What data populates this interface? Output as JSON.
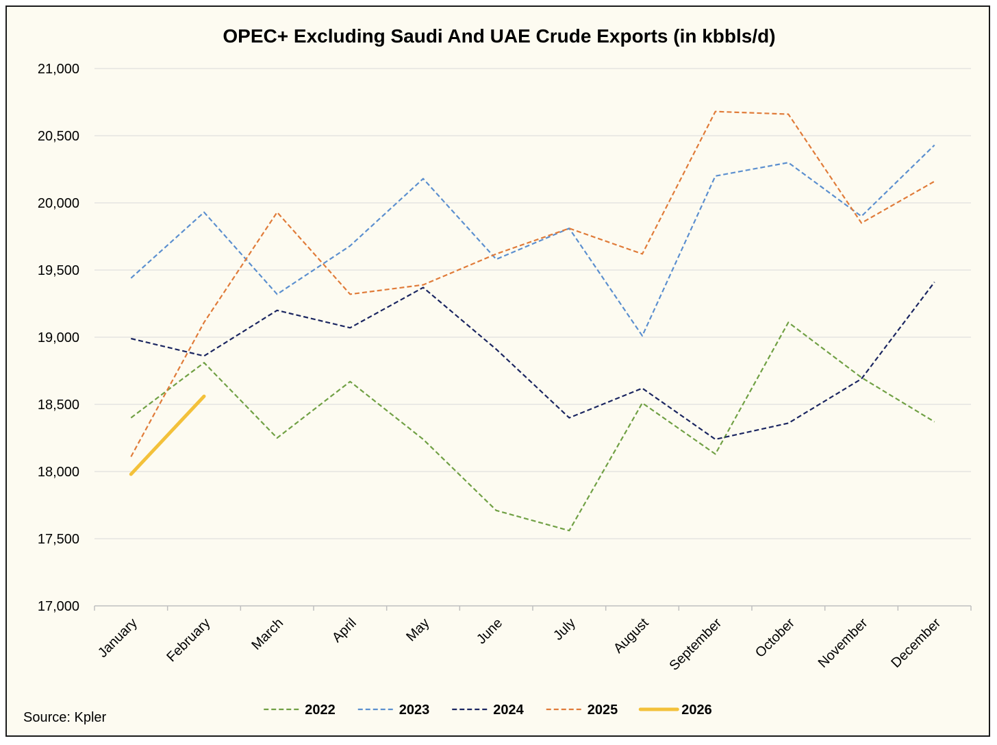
{
  "chart_data": {
    "type": "line",
    "title": "OPEC+ Excluding Saudi And UAE Crude Exports (in kbbls/d)",
    "xlabel": "",
    "ylabel": "",
    "ylim": [
      17000,
      21000
    ],
    "y_ticks": [
      17000,
      17500,
      18000,
      18500,
      19000,
      19500,
      20000,
      20500,
      21000
    ],
    "y_tick_labels": [
      "17,000",
      "17,500",
      "18,000",
      "18,500",
      "19,000",
      "19,500",
      "20,000",
      "20,500",
      "21,000"
    ],
    "categories": [
      "January",
      "February",
      "March",
      "April",
      "May",
      "June",
      "July",
      "August",
      "September",
      "October",
      "November",
      "December"
    ],
    "grid": "horizontal",
    "legend_position": "bottom",
    "series": [
      {
        "name": "2022",
        "color": "#70a044",
        "dash": "dashed",
        "values": [
          18400,
          18810,
          18250,
          18670,
          18240,
          17710,
          17560,
          18510,
          18130,
          19110,
          18700,
          18370
        ]
      },
      {
        "name": "2023",
        "color": "#5b8fcf",
        "dash": "dashed",
        "values": [
          19440,
          19930,
          19320,
          19680,
          20180,
          19580,
          19810,
          19010,
          20200,
          20300,
          19900,
          20430
        ]
      },
      {
        "name": "2024",
        "color": "#1a2560",
        "dash": "dashed",
        "values": [
          18990,
          18860,
          19200,
          19070,
          19370,
          18910,
          18400,
          18620,
          18240,
          18360,
          18690,
          19410
        ]
      },
      {
        "name": "2025",
        "color": "#e07b39",
        "dash": "dashed",
        "values": [
          18110,
          19110,
          19930,
          19320,
          19390,
          19620,
          19810,
          19620,
          20680,
          20660,
          19850,
          20160
        ]
      },
      {
        "name": "2026",
        "color": "#f3c13a",
        "dash": "solid",
        "values": [
          17980,
          18560,
          null,
          null,
          null,
          null,
          null,
          null,
          null,
          null,
          null,
          null
        ]
      }
    ],
    "source": "Source: Kpler"
  }
}
